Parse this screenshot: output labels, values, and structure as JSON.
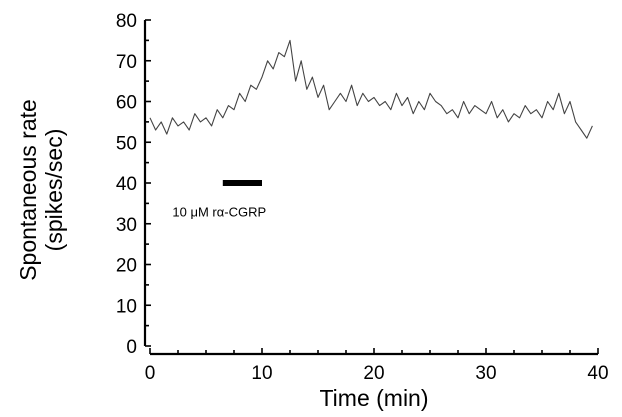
{
  "chart_data": {
    "type": "line",
    "title": "",
    "xlabel": "Time (min)",
    "ylabel_line1": "Spontaneous rate",
    "ylabel_line2": "(spikes/sec)",
    "xlim": [
      0,
      40
    ],
    "ylim": [
      0,
      80
    ],
    "x_ticks": [
      0,
      10,
      20,
      30,
      40
    ],
    "y_ticks": [
      0,
      10,
      20,
      30,
      40,
      50,
      60,
      70,
      80
    ],
    "grid": false,
    "colors": {
      "trace": "#444444",
      "axes": "#000000",
      "bar": "#000000"
    },
    "annotation": {
      "text": "10 μM rα-CGRP",
      "x": 6.7,
      "y": 33
    },
    "application_bar": {
      "x_start": 6.5,
      "x_end": 10,
      "y": 40
    },
    "series": [
      {
        "x": [
          0,
          0.5,
          1,
          1.5,
          2,
          2.5,
          3,
          3.5,
          4,
          4.5,
          5,
          5.5,
          6,
          6.5,
          7,
          7.5,
          8,
          8.5,
          9,
          9.5,
          10,
          10.5,
          11,
          11.5,
          12,
          12.5,
          13,
          13.5,
          14,
          14.5,
          15,
          15.5,
          16,
          16.5,
          17,
          17.5,
          18,
          18.5,
          19,
          19.5,
          20,
          20.5,
          21,
          21.5,
          22,
          22.5,
          23,
          23.5,
          24,
          24.5,
          25,
          25.5,
          26,
          26.5,
          27,
          27.5,
          28,
          28.5,
          29,
          29.5,
          30,
          30.5,
          31,
          31.5,
          32,
          32.5,
          33,
          33.5,
          34,
          34.5,
          35,
          35.5,
          36,
          36.5,
          37,
          37.5,
          38,
          38.5,
          39,
          39.5
        ],
        "y": [
          56,
          53,
          55,
          52,
          56,
          54,
          55,
          53,
          57,
          55,
          56,
          54,
          58,
          56,
          59,
          58,
          62,
          60,
          64,
          63,
          66,
          70,
          68,
          72,
          71,
          75,
          65,
          70,
          63,
          66,
          61,
          64,
          58,
          60,
          62,
          60,
          64,
          59,
          62,
          60,
          61,
          59,
          60,
          58,
          62,
          59,
          61,
          57,
          60,
          58,
          62,
          60,
          59,
          57,
          58,
          56,
          60,
          57,
          59,
          58,
          57,
          60,
          56,
          58,
          55,
          57,
          56,
          59,
          57,
          58,
          56,
          60,
          58,
          62,
          57,
          60,
          55,
          53,
          51,
          54
        ]
      }
    ]
  }
}
